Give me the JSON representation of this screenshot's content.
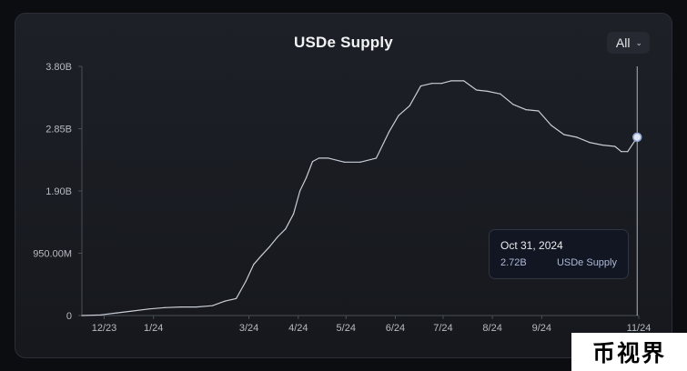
{
  "watermark": "币视界",
  "range_selector": {
    "selected": "All"
  },
  "chart_data": {
    "type": "line",
    "title": "USDe Supply",
    "xlabel": "",
    "ylabel": "",
    "y_ticks": [
      "0",
      "950.00M",
      "1.90B",
      "2.85B",
      "3.80B"
    ],
    "ylim": [
      0,
      3.8
    ],
    "y_unit": "B",
    "x_ticks": [
      "12/23",
      "1/24",
      "3/24",
      "4/24",
      "5/24",
      "6/24",
      "7/24",
      "8/24",
      "9/24",
      "11/24"
    ],
    "xlim": [
      "2023-11-17",
      "2024-11-01"
    ],
    "grid": false,
    "series": [
      {
        "name": "USDe Supply",
        "color": "#c9cdd6",
        "x": [
          "2023-11-17",
          "2023-11-29",
          "2023-12-09",
          "2023-12-19",
          "2023-12-29",
          "2024-01-08",
          "2024-01-18",
          "2024-01-28",
          "2024-02-07",
          "2024-02-15",
          "2024-02-22",
          "2024-02-28",
          "2024-03-04",
          "2024-03-09",
          "2024-03-14",
          "2024-03-19",
          "2024-03-24",
          "2024-03-29",
          "2024-04-02",
          "2024-04-06",
          "2024-04-10",
          "2024-04-14",
          "2024-04-20",
          "2024-04-30",
          "2024-05-10",
          "2024-05-20",
          "2024-05-28",
          "2024-06-03",
          "2024-06-10",
          "2024-06-17",
          "2024-06-24",
          "2024-06-30",
          "2024-07-06",
          "2024-07-14",
          "2024-07-22",
          "2024-07-29",
          "2024-08-06",
          "2024-08-14",
          "2024-08-22",
          "2024-08-30",
          "2024-09-07",
          "2024-09-15",
          "2024-09-23",
          "2024-10-01",
          "2024-10-09",
          "2024-10-17",
          "2024-10-21",
          "2024-10-25",
          "2024-10-31"
        ],
        "y": [
          0.0,
          0.01,
          0.04,
          0.07,
          0.1,
          0.12,
          0.13,
          0.13,
          0.15,
          0.22,
          0.26,
          0.52,
          0.78,
          0.92,
          1.05,
          1.2,
          1.32,
          1.55,
          1.9,
          2.1,
          2.35,
          2.4,
          2.4,
          2.34,
          2.34,
          2.4,
          2.8,
          3.05,
          3.2,
          3.5,
          3.54,
          3.54,
          3.58,
          3.58,
          3.44,
          3.42,
          3.38,
          3.22,
          3.14,
          3.12,
          2.9,
          2.76,
          2.72,
          2.64,
          2.6,
          2.58,
          2.5,
          2.5,
          2.72
        ]
      }
    ],
    "tooltip": {
      "date": "Oct 31, 2024",
      "value": "2.72B",
      "series": "USDe Supply"
    }
  }
}
